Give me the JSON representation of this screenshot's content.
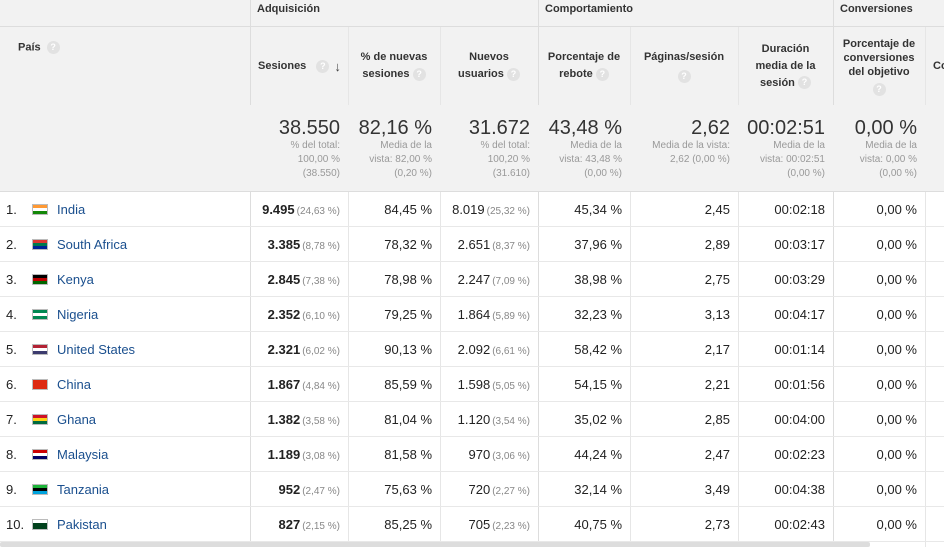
{
  "groups": {
    "acquisition": "Adquisición",
    "behavior": "Comportamiento",
    "conversions": "Conversiones"
  },
  "headers": {
    "country": "País",
    "sessions": "Sesiones",
    "pct_new_sessions": "% de nuevas sesiones",
    "new_users": "Nuevos usuarios",
    "bounce_rate": "Porcentaje de rebote",
    "pages_session": "Páginas/sesión",
    "avg_duration": "Duración media de la sesión",
    "goal_conv_rate": "Porcentaje de conversiones del objetivo",
    "next_col_partial": "Co"
  },
  "help_icon": "?",
  "sort_icon": "↓",
  "totals": {
    "sessions": {
      "big": "38.550",
      "l1": "% del total:",
      "l2": "100,00 %",
      "l3": "(38.550)"
    },
    "pct_new": {
      "big": "82,16 %",
      "l1": "Media de la",
      "l2": "vista: 82,00 %",
      "l3": "(0,20 %)"
    },
    "new_users": {
      "big": "31.672",
      "l1": "% del total:",
      "l2": "100,20 %",
      "l3": "(31.610)"
    },
    "bounce": {
      "big": "43,48 %",
      "l1": "Media de la",
      "l2": "vista: 43,48 %",
      "l3": "(0,00 %)"
    },
    "pages": {
      "big": "2,62",
      "l1": "Media de la vista:",
      "l2": "2,62 (0,00 %)",
      "l3": ""
    },
    "duration": {
      "big": "00:02:51",
      "l1": "Media de la",
      "l2": "vista: 00:02:51",
      "l3": "(0,00 %)"
    },
    "conv": {
      "big": "0,00 %",
      "l1": "Media de la",
      "l2": "vista: 0,00 %",
      "l3": "(0,00 %)"
    }
  },
  "rows": [
    {
      "rank": "1.",
      "country": "India",
      "flag": [
        "#ff9933",
        "#ffffff",
        "#138808"
      ],
      "sessions": "9.495",
      "sessions_pct": "(24,63 %)",
      "pct_new": "84,45 %",
      "new_users": "8.019",
      "new_users_pct": "(25,32 %)",
      "bounce": "45,34 %",
      "pages": "2,45",
      "duration": "00:02:18",
      "conv": "0,00 %"
    },
    {
      "rank": "2.",
      "country": "South Africa",
      "flag": [
        "#de3831",
        "#007a4d",
        "#002395"
      ],
      "sessions": "3.385",
      "sessions_pct": "(8,78 %)",
      "pct_new": "78,32 %",
      "new_users": "2.651",
      "new_users_pct": "(8,37 %)",
      "bounce": "37,96 %",
      "pages": "2,89",
      "duration": "00:03:17",
      "conv": "0,00 %"
    },
    {
      "rank": "3.",
      "country": "Kenya",
      "flag": [
        "#000000",
        "#bb0000",
        "#006600"
      ],
      "sessions": "2.845",
      "sessions_pct": "(7,38 %)",
      "pct_new": "78,98 %",
      "new_users": "2.247",
      "new_users_pct": "(7,09 %)",
      "bounce": "38,98 %",
      "pages": "2,75",
      "duration": "00:03:29",
      "conv": "0,00 %"
    },
    {
      "rank": "4.",
      "country": "Nigeria",
      "flag": [
        "#008751",
        "#ffffff",
        "#008751"
      ],
      "sessions": "2.352",
      "sessions_pct": "(6,10 %)",
      "pct_new": "79,25 %",
      "new_users": "1.864",
      "new_users_pct": "(5,89 %)",
      "bounce": "32,23 %",
      "pages": "3,13",
      "duration": "00:04:17",
      "conv": "0,00 %"
    },
    {
      "rank": "5.",
      "country": "United States",
      "flag": [
        "#b22234",
        "#ffffff",
        "#3c3b6e"
      ],
      "sessions": "2.321",
      "sessions_pct": "(6,02 %)",
      "pct_new": "90,13 %",
      "new_users": "2.092",
      "new_users_pct": "(6,61 %)",
      "bounce": "58,42 %",
      "pages": "2,17",
      "duration": "00:01:14",
      "conv": "0,00 %"
    },
    {
      "rank": "6.",
      "country": "China",
      "flag": [
        "#de2910",
        "#de2910",
        "#de2910"
      ],
      "sessions": "1.867",
      "sessions_pct": "(4,84 %)",
      "pct_new": "85,59 %",
      "new_users": "1.598",
      "new_users_pct": "(5,05 %)",
      "bounce": "54,15 %",
      "pages": "2,21",
      "duration": "00:01:56",
      "conv": "0,00 %"
    },
    {
      "rank": "7.",
      "country": "Ghana",
      "flag": [
        "#ce1126",
        "#fcd116",
        "#006b3f"
      ],
      "sessions": "1.382",
      "sessions_pct": "(3,58 %)",
      "pct_new": "81,04 %",
      "new_users": "1.120",
      "new_users_pct": "(3,54 %)",
      "bounce": "35,02 %",
      "pages": "2,85",
      "duration": "00:04:00",
      "conv": "0,00 %"
    },
    {
      "rank": "8.",
      "country": "Malaysia",
      "flag": [
        "#cc0001",
        "#ffffff",
        "#010066"
      ],
      "sessions": "1.189",
      "sessions_pct": "(3,08 %)",
      "pct_new": "81,58 %",
      "new_users": "970",
      "new_users_pct": "(3,06 %)",
      "bounce": "44,24 %",
      "pages": "2,47",
      "duration": "00:02:23",
      "conv": "0,00 %"
    },
    {
      "rank": "9.",
      "country": "Tanzania",
      "flag": [
        "#1eb53a",
        "#000000",
        "#00a3dd"
      ],
      "sessions": "952",
      "sessions_pct": "(2,47 %)",
      "pct_new": "75,63 %",
      "new_users": "720",
      "new_users_pct": "(2,27 %)",
      "bounce": "32,14 %",
      "pages": "3,49",
      "duration": "00:04:38",
      "conv": "0,00 %"
    },
    {
      "rank": "10.",
      "country": "Pakistan",
      "flag": [
        "#ffffff",
        "#01411c",
        "#01411c"
      ],
      "sessions": "827",
      "sessions_pct": "(2,15 %)",
      "pct_new": "85,25 %",
      "new_users": "705",
      "new_users_pct": "(2,23 %)",
      "bounce": "40,75 %",
      "pages": "2,73",
      "duration": "00:02:43",
      "conv": "0,00 %"
    }
  ]
}
